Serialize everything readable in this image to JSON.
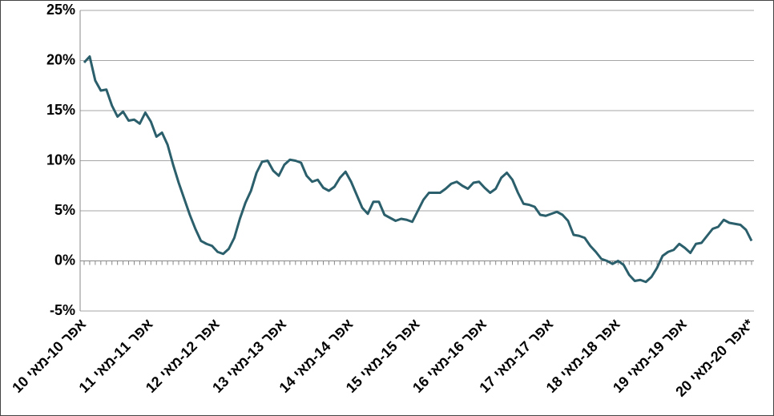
{
  "chart_data": {
    "type": "line",
    "categories": [
      "אפר 10-מאי 10",
      null,
      null,
      null,
      null,
      null,
      null,
      null,
      null,
      null,
      null,
      null,
      "אפר 11-מאי 11",
      null,
      null,
      null,
      null,
      null,
      null,
      null,
      null,
      null,
      null,
      null,
      "אפר 12-מאי 12",
      null,
      null,
      null,
      null,
      null,
      null,
      null,
      null,
      null,
      null,
      null,
      "אפר 13-מאי 13",
      null,
      null,
      null,
      null,
      null,
      null,
      null,
      null,
      null,
      null,
      null,
      "אפר 14-מאי 14",
      null,
      null,
      null,
      null,
      null,
      null,
      null,
      null,
      null,
      null,
      null,
      "אפר 15-מאי 15",
      null,
      null,
      null,
      null,
      null,
      null,
      null,
      null,
      null,
      null,
      null,
      "אפר 16-מאי 16",
      null,
      null,
      null,
      null,
      null,
      null,
      null,
      null,
      null,
      null,
      null,
      "אפר 17-מאי 17",
      null,
      null,
      null,
      null,
      null,
      null,
      null,
      null,
      null,
      null,
      null,
      "אפר 18-מאי 18",
      null,
      null,
      null,
      null,
      null,
      null,
      null,
      null,
      null,
      null,
      null,
      "אפר 19-מאי 19",
      null,
      null,
      null,
      null,
      null,
      null,
      null,
      null,
      null,
      null,
      null,
      "אפר 20-מאי 20*"
    ],
    "series": [
      {
        "color": "#2b5f6b",
        "values": [
          19.8,
          20.4,
          18,
          17,
          17.1,
          15.5,
          14.4,
          14.9,
          14,
          14.1,
          13.7,
          14.8,
          13.9,
          12.4,
          12.8,
          11.6,
          9.6,
          7.8,
          6.2,
          4.6,
          3.2,
          2.0,
          1.7,
          1.5,
          0.9,
          0.7,
          1.2,
          2.3,
          4.2,
          5.8,
          7,
          8.8,
          9.9,
          10,
          9,
          8.5,
          9.6,
          10.1,
          10,
          9.8,
          8.5,
          7.9,
          8.1,
          7.3,
          7,
          7.4,
          8.3,
          8.9,
          7.9,
          6.6,
          5.3,
          4.7,
          5.9,
          5.9,
          4.6,
          4.3,
          4,
          4.2,
          4.1,
          3.9,
          5,
          6.1,
          6.8,
          6.8,
          6.8,
          7.2,
          7.7,
          7.9,
          7.5,
          7.2,
          7.8,
          7.9,
          7.3,
          6.8,
          7.2,
          8.3,
          8.8,
          8.1,
          6.8,
          5.7,
          5.6,
          5.4,
          4.6,
          4.5,
          4.7,
          4.9,
          4.6,
          4,
          2.6,
          2.5,
          2.3,
          1.5,
          0.9,
          0.2,
          0,
          -0.3,
          0,
          -0.4,
          -1.4,
          -2,
          -1.9,
          -2.1,
          -1.6,
          -0.7,
          0.5,
          0.9,
          1.1,
          1.7,
          1.3,
          0.8,
          1.7,
          1.8,
          2.5,
          3.2,
          3.4,
          4.1,
          3.8,
          3.7,
          3.6,
          3.1,
          2.0
        ]
      }
    ],
    "ylim": [
      -5,
      25
    ],
    "yticks": [
      {
        "value": -5,
        "label": "-5%"
      },
      {
        "value": 0,
        "label": "0%"
      },
      {
        "value": 5,
        "label": "5%"
      },
      {
        "value": 10,
        "label": "10%"
      },
      {
        "value": 15,
        "label": "15%"
      },
      {
        "value": 20,
        "label": "20%"
      },
      {
        "value": 25,
        "label": "25%"
      }
    ],
    "grid": true
  }
}
